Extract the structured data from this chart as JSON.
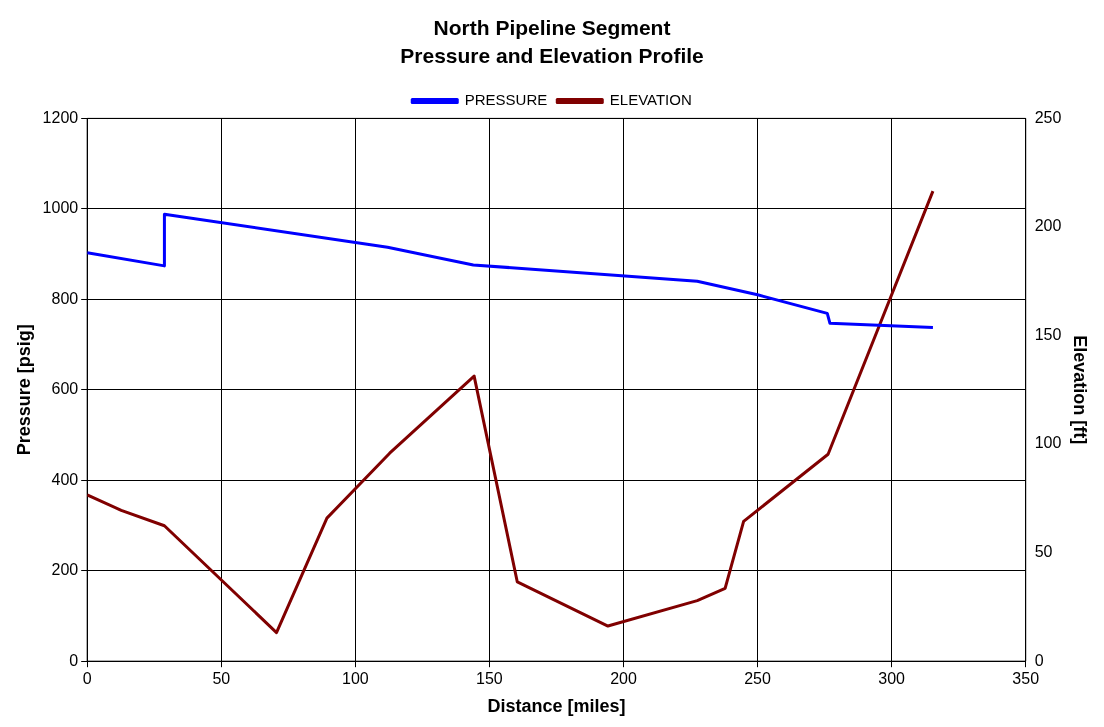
{
  "chart_data": {
    "type": "line",
    "title": "North Pipeline Segment",
    "subtitle": "Pressure and Elevation Profile",
    "xlabel": "Distance [miles]",
    "ylabel": "Pressure [psig]",
    "y2label": "Elevation [ft]",
    "xlim": [
      0,
      350
    ],
    "xticks": [
      0,
      50,
      100,
      150,
      200,
      250,
      300,
      350
    ],
    "ylim": [
      0,
      1200
    ],
    "yticks": [
      0,
      200,
      400,
      600,
      800,
      1000,
      1200
    ],
    "y2lim": [
      0,
      250
    ],
    "y2ticks": [
      0,
      50,
      100,
      150,
      200,
      250
    ],
    "grid": true,
    "legend": "top",
    "marker": "none",
    "line_style": "solid",
    "series": [
      {
        "name": "PRESSURE",
        "color": "#0000ff",
        "x": [
          0,
          28.8,
          28.8,
          112,
          144,
          227.5,
          250,
          276,
          277,
          315.4
        ],
        "values": [
          903,
          874,
          988,
          915,
          876,
          840,
          810,
          769,
          747,
          738
        ]
      },
      {
        "name": "ELEVATION",
        "color": "#800000",
        "axis": "y2",
        "x": [
          0,
          12.7,
          28.8,
          70.6,
          89.4,
          112.8,
          144.3,
          160.4,
          194.2,
          227.5,
          237.9,
          244.8,
          276.3,
          315.4
        ],
        "values": [
          76.6,
          69.5,
          62.4,
          13.2,
          65.9,
          95.8,
          131.3,
          36.5,
          16.2,
          27.9,
          33.5,
          64.4,
          95.3,
          216.5
        ]
      }
    ]
  }
}
